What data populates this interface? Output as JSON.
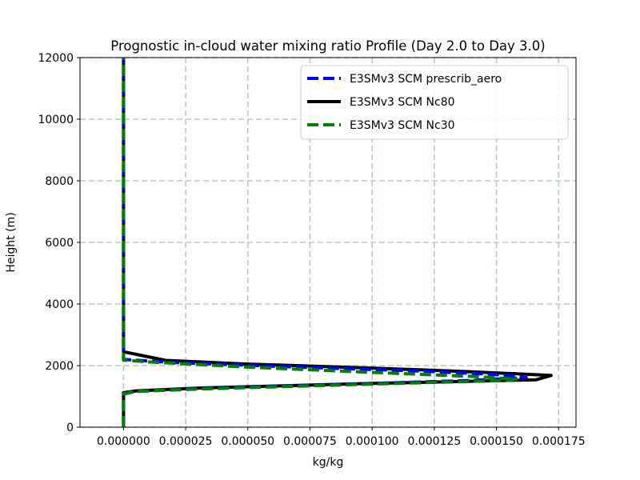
{
  "chart_data": {
    "type": "line",
    "title": "Prognostic in-cloud water mixing ratio Profile (Day 2.0 to Day 3.0)",
    "xlabel": "kg/kg",
    "ylabel": "Height (m)",
    "xlim": [
      -1.75e-05,
      0.000182
    ],
    "ylim": [
      0,
      12000
    ],
    "xticks": [
      0.0,
      2.5e-05,
      5e-05,
      7.5e-05,
      0.0001,
      0.000125,
      0.00015,
      0.000175
    ],
    "xtick_labels": [
      "0.000000",
      "0.000025",
      "0.000050",
      "0.000075",
      "0.000100",
      "0.000125",
      "0.000150",
      "0.000175"
    ],
    "yticks": [
      0,
      2000,
      4000,
      6000,
      8000,
      10000,
      12000
    ],
    "ytick_labels": [
      "0",
      "2000",
      "4000",
      "6000",
      "8000",
      "10000",
      "12000"
    ],
    "grid": true,
    "legend_position": "upper-right",
    "series": [
      {
        "name": "E3SMv3 SCM prescrib_aero",
        "color": "#0000ff",
        "style": "dashed",
        "points": [
          [
            0,
            0
          ],
          [
            0,
            1080
          ],
          [
            5e-06,
            1160
          ],
          [
            3e-05,
            1260
          ],
          [
            0.0001,
            1420
          ],
          [
            0.00014,
            1520
          ],
          [
            0.000162,
            1610
          ],
          [
            0.00015,
            1710
          ],
          [
            0.00012,
            1820
          ],
          [
            7e-05,
            1950
          ],
          [
            2e-05,
            2100
          ],
          [
            0,
            2200
          ],
          [
            0,
            12000
          ]
        ]
      },
      {
        "name": "E3SMv3 SCM Nc80",
        "color": "#000000",
        "style": "solid",
        "points": [
          [
            0,
            0
          ],
          [
            0,
            1120
          ],
          [
            5e-06,
            1180
          ],
          [
            3e-05,
            1270
          ],
          [
            0.0001,
            1420
          ],
          [
            0.000166,
            1540
          ],
          [
            0.000172,
            1680
          ],
          [
            0.00014,
            1800
          ],
          [
            0.0001,
            1920
          ],
          [
            5e-05,
            2050
          ],
          [
            1.7e-05,
            2170
          ],
          [
            0,
            2450
          ],
          [
            0,
            12000
          ]
        ]
      },
      {
        "name": "E3SMv3 SCM Nc30",
        "color": "#008000",
        "style": "dashed",
        "points": [
          [
            0,
            0
          ],
          [
            0,
            1080
          ],
          [
            5e-06,
            1160
          ],
          [
            3e-05,
            1240
          ],
          [
            0.0001,
            1400
          ],
          [
            0.000155,
            1520
          ],
          [
            0.000158,
            1560
          ],
          [
            0.00014,
            1650
          ],
          [
            0.0001,
            1780
          ],
          [
            5e-05,
            1950
          ],
          [
            1e-05,
            2120
          ],
          [
            0,
            2180
          ],
          [
            0,
            12000
          ]
        ]
      }
    ]
  }
}
